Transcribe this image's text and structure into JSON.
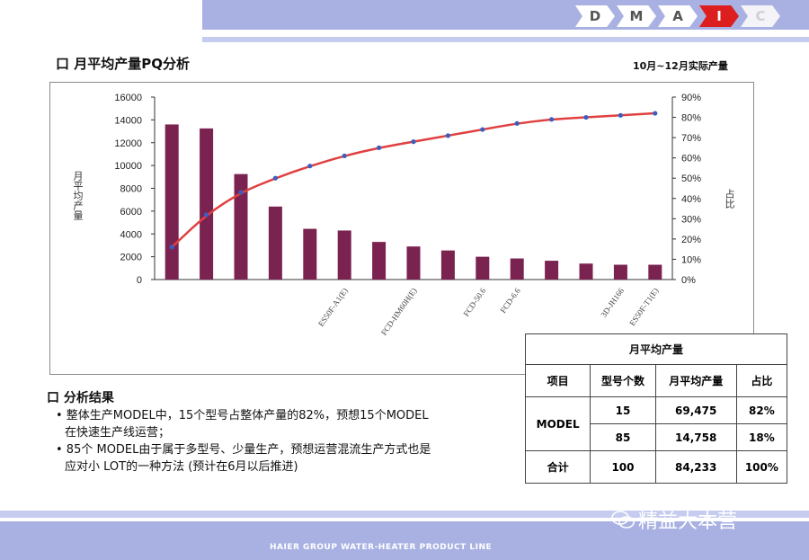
{
  "dmaic": [
    "D",
    "M",
    "A",
    "I",
    "C"
  ],
  "title": "口 月平均产量PQ分析",
  "subtitle": "10月~12月实际产量",
  "chart_data": {
    "type": "bar",
    "ylabel": "月平均产量",
    "y2label": "占比",
    "ylim": [
      0,
      16000
    ],
    "yticks": [
      "16000",
      "14000",
      "12000",
      "10000",
      "8000",
      "6000",
      "4000",
      "2000",
      "0"
    ],
    "y2ticks": [
      "90%",
      "80%",
      "70%",
      "60%",
      "50%",
      "40%",
      "30%",
      "20%",
      "10%",
      "0%"
    ],
    "y2lim": [
      0,
      90
    ],
    "categories": [
      "",
      "",
      "",
      "",
      "",
      "ES50F-A1(E)",
      "",
      "FCD-HM60H(E)",
      "",
      "FCD-50.6",
      "FCD-6.6",
      "",
      "",
      "3D-JH166",
      "ES50F-T1(E)"
    ],
    "series": [
      {
        "type": "bar",
        "color": "#7b2350",
        "values": [
          13600,
          13250,
          9250,
          6400,
          4450,
          4300,
          3300,
          2900,
          2550,
          2000,
          1850,
          1650,
          1400,
          1300,
          1300
        ]
      },
      {
        "type": "line",
        "color": "#e04040",
        "unit": "%",
        "values": [
          16,
          32,
          43,
          50,
          56,
          61,
          65,
          68,
          71,
          74,
          77,
          79,
          80,
          81,
          82
        ]
      }
    ]
  },
  "results": {
    "heading": "口 分析结果",
    "b1": "• 整体生产MODEL中，15个型号占整体产量的82%，预想15个MODEL",
    "b1b": "在快速生产线运营；",
    "b2": "• 85个 MODEL由于属于多型号、少量生产，预想运营混流生产方式也是",
    "b2b": "应对小 LOT的一种方法 (预计在6月以后推进)"
  },
  "table": {
    "title": "月平均产量",
    "headers": [
      "项目",
      "型号个数",
      "月平均产量",
      "占比"
    ],
    "row1": [
      "MODEL",
      "15",
      "69,475",
      "82%"
    ],
    "row2": [
      "",
      "85",
      "14,758",
      "18%"
    ],
    "row3": [
      "合计",
      "100",
      "84,233",
      "100%"
    ]
  },
  "footer": "HAIER GROUP WATER-HEATER PRODUCT LINE",
  "watermark": "精益大本营"
}
